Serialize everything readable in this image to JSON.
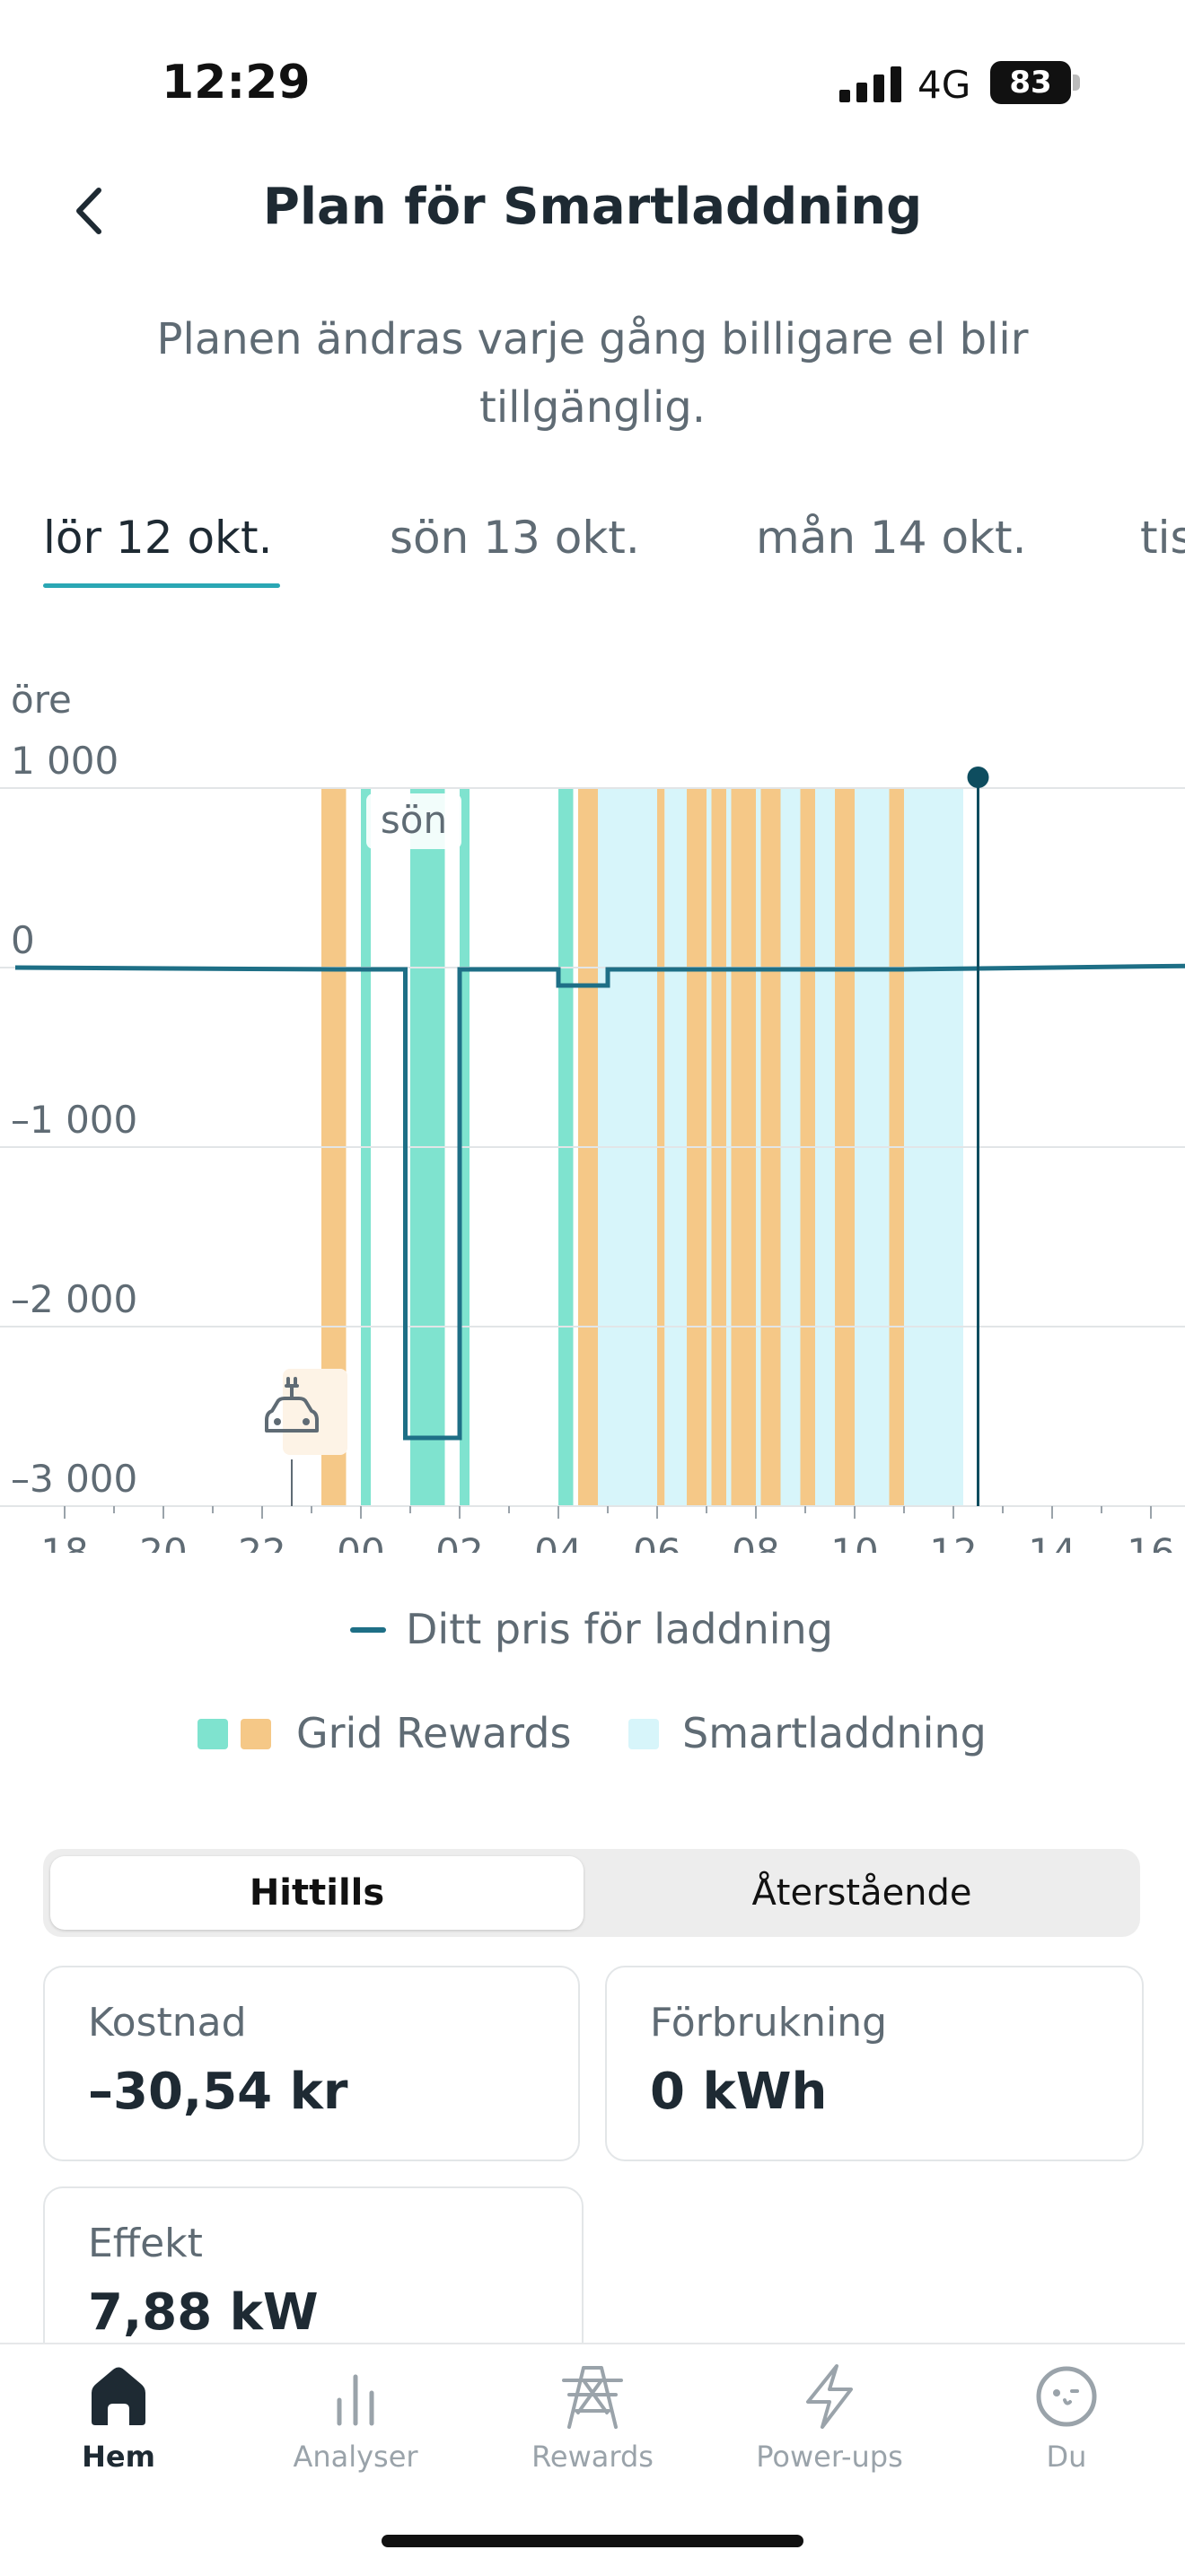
{
  "status_bar": {
    "time": "12:29",
    "network": "4G",
    "battery": "83"
  },
  "header": {
    "title": "Plan för Smartladdning",
    "subtitle": "Planen ändras varje gång billigare el blir tillgänglig."
  },
  "date_tabs": [
    {
      "label": "lör 12 okt.",
      "active": true
    },
    {
      "label": "sön 13 okt.",
      "active": false
    },
    {
      "label": "mån 14 okt.",
      "active": false
    },
    {
      "label": "tis",
      "active": false
    }
  ],
  "chart_data": {
    "type": "line",
    "ylabel": "öre",
    "y_ticks": [
      "1 000",
      "0",
      "–1 000",
      "–2 000",
      "–3 000"
    ],
    "ylim": [
      -3000,
      1000
    ],
    "x_ticks": [
      "18",
      "20",
      "22",
      "00",
      "02",
      "04",
      "06",
      "08",
      "10",
      "12",
      "14",
      "16"
    ],
    "day_marker": "sön",
    "series": [
      {
        "name": "Ditt pris för laddning",
        "color": "#1e6f86",
        "x": [
          17,
          23.5,
          24.9,
          24.9,
          26.0,
          26.0,
          28.0,
          28.0,
          29.0,
          29.0,
          35.0,
          41
        ],
        "values": [
          0,
          -10,
          -10,
          -2620,
          -2620,
          -10,
          -10,
          -100,
          -100,
          -10,
          -10,
          10
        ]
      }
    ],
    "bands": {
      "grid_rewards_green": [
        [
          24.0,
          24.2
        ],
        [
          25.0,
          25.7
        ],
        [
          26.0,
          26.2
        ],
        [
          28.0,
          28.3
        ]
      ],
      "grid_rewards_orange": [
        [
          23.2,
          23.7
        ],
        [
          28.4,
          28.8
        ],
        [
          30.0,
          30.15
        ],
        [
          30.6,
          31.0
        ],
        [
          31.1,
          31.4
        ],
        [
          31.5,
          32.0
        ],
        [
          32.1,
          32.5
        ],
        [
          32.9,
          33.2
        ],
        [
          33.6,
          34.0
        ],
        [
          34.7,
          35.0
        ]
      ],
      "smartladdning": [
        [
          28.8,
          30.0
        ],
        [
          30.15,
          30.6
        ],
        [
          31.0,
          31.1
        ],
        [
          31.4,
          31.5
        ],
        [
          32.0,
          32.1
        ],
        [
          32.5,
          32.9
        ],
        [
          33.2,
          33.6
        ],
        [
          34.0,
          34.7
        ],
        [
          35.0,
          36.2
        ]
      ]
    },
    "now_marker_x": 36.5,
    "car_marker_x": 22.6
  },
  "legend": {
    "price": "Ditt pris för laddning",
    "grid": "Grid Rewards",
    "smart": "Smartladdning"
  },
  "colors": {
    "grid_green": "#7fe3cf",
    "grid_orange": "#f5c887",
    "smart": "#d7f5fa",
    "line": "#1e6f86",
    "accent": "#2aa7b4"
  },
  "segment": {
    "active": "Hittills",
    "inactive": "Återstående"
  },
  "stats": {
    "cost_label": "Kostnad",
    "cost_value": "–30,54 kr",
    "usage_label": "Förbrukning",
    "usage_value": "0 kWh",
    "power_label": "Effekt",
    "power_value": "7,88 kW"
  },
  "nav": [
    {
      "label": "Hem",
      "icon": "home-icon",
      "active": true
    },
    {
      "label": "Analyser",
      "icon": "bar-chart-icon",
      "active": false
    },
    {
      "label": "Rewards",
      "icon": "power-tower-icon",
      "active": false
    },
    {
      "label": "Power-ups",
      "icon": "lightning-icon",
      "active": false
    },
    {
      "label": "Du",
      "icon": "face-icon",
      "active": false
    }
  ]
}
